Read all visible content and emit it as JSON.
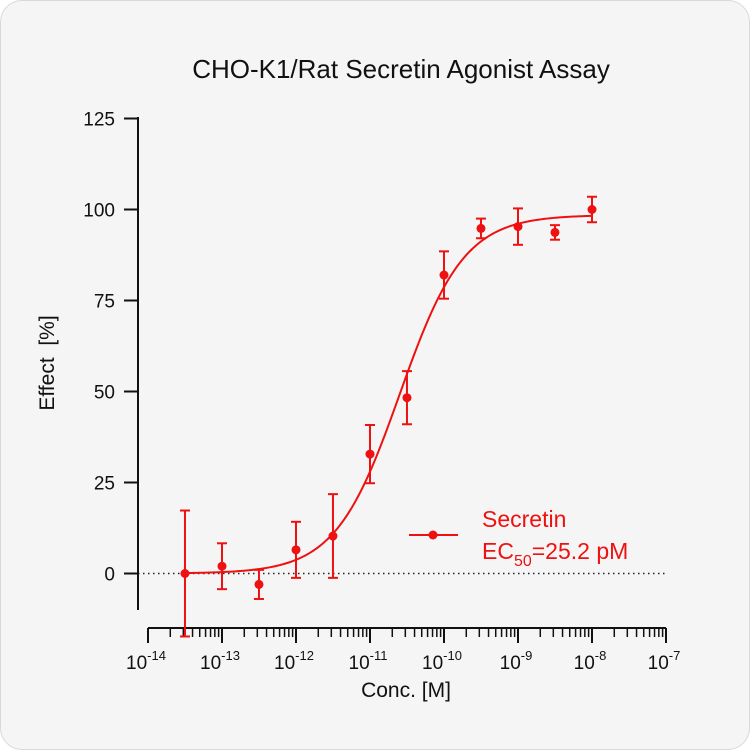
{
  "chart_data": {
    "type": "scatter",
    "title": "CHO-K1/Rat Secretin Agonist Assay",
    "xlabel": "Conc. [M]",
    "ylabel": "Effect  [%]",
    "x_scale": "log",
    "xlim": [
      1e-14,
      1e-07
    ],
    "ylim": [
      -10,
      125
    ],
    "yticks": [
      "0",
      "25",
      "50",
      "75",
      "100",
      "125"
    ],
    "xtick_base": "10",
    "xtick_exponents": [
      "-14",
      "-13",
      "-12",
      "-11",
      "-10",
      "-9",
      "-8",
      "-7"
    ],
    "reference_line": {
      "y": 0,
      "style": "dotted"
    },
    "colors": {
      "series": "#ee1111",
      "axis": "#111111"
    },
    "series": [
      {
        "name": "Secretin",
        "marker": "circle",
        "points": [
          {
            "x": 3.16e-14,
            "y": 0.0,
            "err": 17.3
          },
          {
            "x": 1e-13,
            "y": 2.0,
            "err": 6.3
          },
          {
            "x": 3.16e-13,
            "y": -3.0,
            "err": 4.0
          },
          {
            "x": 1e-12,
            "y": 6.5,
            "err": 7.7
          },
          {
            "x": 3.16e-12,
            "y": 10.3,
            "err": 11.5
          },
          {
            "x": 1e-11,
            "y": 32.8,
            "err": 8.0
          },
          {
            "x": 3.16e-11,
            "y": 48.3,
            "err": 7.3
          },
          {
            "x": 1e-10,
            "y": 82.0,
            "err": 6.5
          },
          {
            "x": 3.16e-10,
            "y": 94.8,
            "err": 2.7
          },
          {
            "x": 1e-09,
            "y": 95.3,
            "err": 5.0
          },
          {
            "x": 3.16e-09,
            "y": 93.7,
            "err": 2.0
          },
          {
            "x": 1e-08,
            "y": 100.0,
            "err": 3.5
          }
        ],
        "fit": {
          "model": "4PL",
          "bottom": 0,
          "top": 98.5,
          "ec50": 2.52e-11,
          "hill": 1.0
        }
      }
    ],
    "legend": {
      "placement": "bottom-right",
      "label": "Secretin",
      "ec50_prefix": "EC",
      "ec50_sub": "50",
      "ec50_value": "=25.2 pM"
    }
  }
}
